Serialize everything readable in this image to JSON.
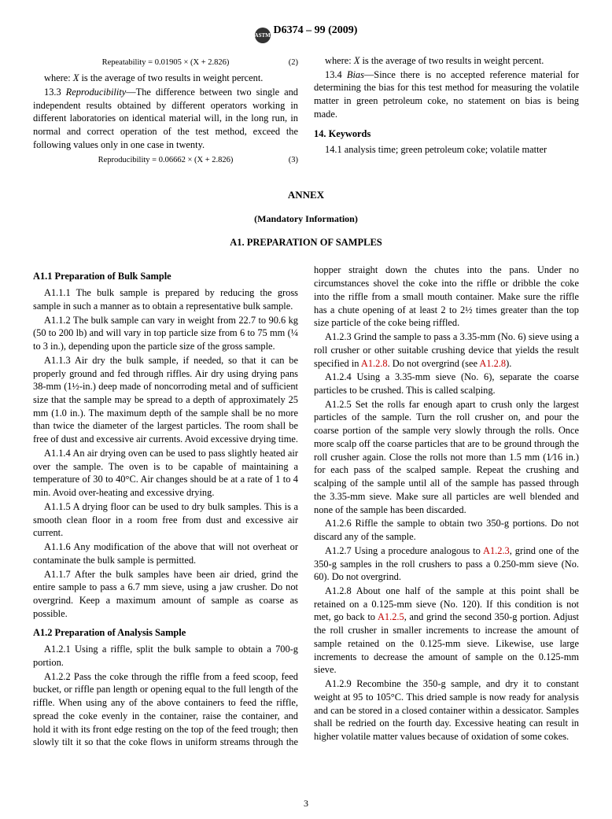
{
  "header": {
    "designation": "D6374 – 99 (2009)",
    "logo_text": "ASTM"
  },
  "top": {
    "eq2": {
      "text": "Repeatability = 0.01905 × (X + 2.826)",
      "num": "(2)"
    },
    "where_line": "where: X is the average of two results in weight percent.",
    "p1": "13.3 Reproducibility—The difference between two single and independent results obtained by different operators working in different laboratories on identical material will, in the long run, in normal and correct operation of the test method, exceed the following values only in one case in twenty.",
    "eq3": {
      "text": "Reproducibility = 0.06662 × (X + 2.826)",
      "num": "(3)"
    },
    "where_line2": "where: X is the average of two results in weight percent.",
    "p2": "13.4 Bias—Since there is no accepted reference material for determining the bias for this test method for measuring the volatile matter in green petroleum coke, no statement on bias is being made.",
    "keywords_head": "14. Keywords",
    "keywords": "14.1 analysis time; green petroleum coke; volatile matter"
  },
  "annex": {
    "title": "ANNEX",
    "sub": "(Mandatory Information)",
    "sec": "A1. PREPARATION OF SAMPLES",
    "h1": "A1.1 Preparation of Bulk Sample",
    "a111": "A1.1.1 The bulk sample is prepared by reducing the gross sample in such a manner as to obtain a representative bulk sample.",
    "a112": "A1.1.2 The bulk sample can vary in weight from 22.7 to 90.6 kg (50 to 200 lb) and will vary in top particle size from 6 to 75 mm (¼ to 3 in.), depending upon the particle size of the gross sample.",
    "a113": "A1.1.3 Air dry the bulk sample, if needed, so that it can be properly ground and fed through riffles. Air dry using drying pans 38-mm (1½-in.) deep made of noncorroding metal and of sufficient size that the sample may be spread to a depth of approximately 25 mm (1.0 in.). The maximum depth of the sample shall be no more than twice the diameter of the largest particles. The room shall be free of dust and excessive air currents. Avoid excessive drying time.",
    "a114": "A1.1.4 An air drying oven can be used to pass slightly heated air over the sample. The oven is to be capable of maintaining a temperature of 30 to 40°C. Air changes should be at a rate of 1 to 4 min. Avoid over-heating and excessive drying.",
    "a115": "A1.1.5 A drying floor can be used to dry bulk samples. This is a smooth clean floor in a room free from dust and excessive air current.",
    "a116": "A1.1.6 Any modification of the above that will not overheat or contaminate the bulk sample is permitted.",
    "a117": "A1.1.7 After the bulk samples have been air dried, grind the entire sample to pass a 6.7 mm sieve, using a jaw crusher. Do not overgrind. Keep a maximum amount of sample as coarse as possible.",
    "h2": "A1.2 Preparation of Analysis Sample",
    "a121": "A1.2.1 Using a riffle, split the bulk sample to obtain a 700-g portion.",
    "a122": "A1.2.2 Pass the coke through the riffle from a feed scoop, feed bucket, or riffle pan length or opening equal to the full length of the riffle. When using any of the above containers to feed the riffle, spread the coke evenly in the container, raise the container, and hold it with its front edge resting on the top of the feed trough; then slowly tilt it so that the coke flows in uniform streams through the hopper straight down the chutes into the pans. Under no circumstances shovel the coke into the riffle or dribble the coke into the riffle from a small mouth container. Make sure the riffle has a chute opening of at least 2 to 2½ times greater than the top size particle of the coke being riffled.",
    "a123_a": "A1.2.3 Grind the sample to pass a 3.35-mm (No. 6) sieve using a roll crusher or other suitable crushing device that yields the result specified in ",
    "a123_ref1": "A1.2.8",
    "a123_b": ". Do not overgrind (see ",
    "a123_ref2": "A1.2.8",
    "a123_c": ").",
    "a124": "A1.2.4 Using a 3.35-mm sieve (No. 6), separate the coarse particles to be crushed. This is called scalping.",
    "a125": "A1.2.5 Set the rolls far enough apart to crush only the largest particles of the sample. Turn the roll crusher on, and pour the coarse portion of the sample very slowly through the rolls. Once more scalp off the coarse particles that are to be ground through the roll crusher again. Close the rolls not more than 1.5 mm (1⁄16 in.) for each pass of the scalped sample. Repeat the crushing and scalping of the sample until all of the sample has passed through the 3.35-mm sieve. Make sure all particles are well blended and none of the sample has been discarded.",
    "a126": "A1.2.6 Riffle the sample to obtain two 350-g portions. Do not discard any of the sample.",
    "a127_a": "A1.2.7 Using a procedure analogous to ",
    "a127_ref": "A1.2.3",
    "a127_b": ", grind one of the 350-g samples in the roll crushers to pass a 0.250-mm sieve (No. 60). Do not overgrind.",
    "a128_a": "A1.2.8 About one half of the sample at this point shall be retained on a 0.125-mm sieve (No. 120). If this condition is not met, go back to ",
    "a128_ref": "A1.2.5",
    "a128_b": ", and grind the second 350-g portion. Adjust the roll crusher in smaller increments to increase the amount of sample retained on the 0.125-mm sieve. Likewise, use large increments to decrease the amount of sample on the 0.125-mm sieve.",
    "a129": "A1.2.9 Recombine the 350-g sample, and dry it to constant weight at 95 to 105°C. This dried sample is now ready for analysis and can be stored in a closed container within a dessicator. Samples shall be redried on the fourth day. Excessive heating can result in higher volatile matter values because of oxidation of some cokes."
  },
  "pagenum": "3"
}
